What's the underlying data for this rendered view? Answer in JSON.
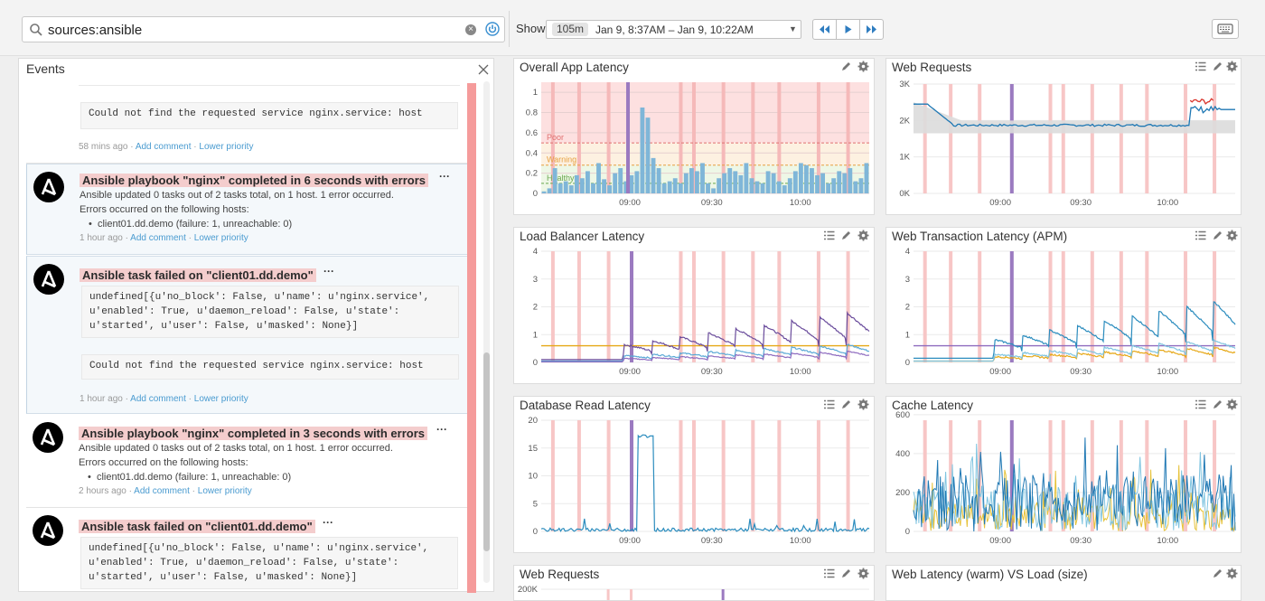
{
  "search": {
    "query": "sources:ansible"
  },
  "timebar": {
    "show_label": "Show",
    "duration": "105m",
    "range": "Jan 9, 8:37AM – Jan 9, 10:22AM"
  },
  "events": {
    "title": "Events",
    "items": [
      {
        "code": "Could not find the requested service nginx.service: host",
        "time": "58 mins ago",
        "add_comment": "Add comment",
        "priority": "Lower priority"
      },
      {
        "title": "Ansible playbook \"nginx\" completed in 6 seconds with errors",
        "line1": "Ansible updated 0 tasks out of 2 tasks total, on 1 host. 1 error occurred.",
        "line2": "Errors occurred on the following hosts:",
        "host": "client01.dd.demo (failure: 1, unreachable: 0)",
        "time": "1 hour ago",
        "add_comment": "Add comment",
        "priority": "Lower priority"
      },
      {
        "title": "Ansible task failed on \"client01.dd.demo\"",
        "code1": "undefined[{u'no_block': False, u'name': u'nginx.service',",
        "code2": "u'enabled': True, u'daemon_reload': False, u'state':",
        "code3": "u'started', u'user': False, u'masked': None}]",
        "code4": "Could not find the requested service nginx.service: host",
        "time": "1 hour ago",
        "add_comment": "Add comment",
        "priority": "Lower priority"
      },
      {
        "title": "Ansible playbook \"nginx\" completed in 3 seconds with errors",
        "line1": "Ansible updated 0 tasks out of 2 tasks total, on 1 host. 1 error occurred.",
        "line2": "Errors occurred on the following hosts:",
        "host": "client01.dd.demo (failure: 1, unreachable: 0)",
        "time": "2 hours ago",
        "add_comment": "Add comment",
        "priority": "Lower priority"
      },
      {
        "title": "Ansible task failed on \"client01.dd.demo\"",
        "code1": "undefined[{u'no_block': False, u'name': u'nginx.service',",
        "code2": "u'enabled': True, u'daemon_reload': False, u'state':",
        "code3": "u'started', u'user': False, u'masked': None}]"
      }
    ]
  },
  "panels": {
    "overall_app_latency": {
      "title": "Overall App Latency"
    },
    "web_requests": {
      "title": "Web Requests"
    },
    "load_balancer_latency": {
      "title": "Load Balancer Latency"
    },
    "web_transaction_latency": {
      "title": "Web Transaction Latency (APM)"
    },
    "database_read_latency": {
      "title": "Database Read Latency"
    },
    "cache_latency": {
      "title": "Cache Latency"
    },
    "web_requests_2": {
      "title": "Web Requests"
    },
    "web_latency_vs_load": {
      "title": "Web Latency (warm) VS Load (size)"
    }
  },
  "chart_data": [
    {
      "id": "overall",
      "type": "bar",
      "x_ticks": [
        "09:00",
        "09:30",
        "10:00"
      ],
      "ylim": [
        0,
        1.1
      ],
      "y_ticks": [
        "0",
        "0.2",
        "0.4",
        "0.6",
        "0.8",
        "1"
      ],
      "thresholds": [
        {
          "label": "Poor",
          "value": 0.5,
          "color": "#e07070"
        },
        {
          "label": "Warning",
          "value": 0.28,
          "color": "#e6a040"
        },
        {
          "label": "Healthy",
          "value": 0.1,
          "color": "#6aa84f"
        }
      ],
      "values": [
        0.02,
        0.05,
        0.25,
        0.1,
        0.12,
        0.08,
        0.18,
        0.15,
        0.22,
        0.1,
        0.3,
        0.14,
        0.08,
        0.2,
        0.25,
        0.12,
        0.18,
        0.22,
        0.85,
        0.75,
        0.35,
        0.25,
        0.1,
        0.12,
        0.15,
        0.1,
        0.2,
        0.25,
        0.22,
        0.3,
        0.1,
        0.05,
        0.15,
        0.2,
        0.25,
        0.22,
        0.18,
        0.3,
        0.15,
        0.12,
        0.1,
        0.22,
        0.2,
        0.12,
        0.08,
        0.15,
        0.22,
        0.3,
        0.28,
        0.25,
        0.18,
        0.2,
        0.1,
        0.15,
        0.22,
        0.2,
        0.25,
        0.12,
        0.15,
        0.3
      ]
    },
    {
      "id": "webreq",
      "type": "line",
      "x_ticks": [
        "09:00",
        "09:30",
        "10:00"
      ],
      "ylim": [
        0,
        3000
      ],
      "y_ticks": [
        "0K",
        "1K",
        "2K",
        "3K"
      ],
      "baseline": 1870,
      "peak": 2450
    },
    {
      "id": "lb",
      "type": "line",
      "x_ticks": [
        "09:00",
        "09:30",
        "10:00"
      ],
      "ylim": [
        0,
        4
      ],
      "y_ticks": [
        "0",
        "1",
        "2",
        "3",
        "4"
      ]
    },
    {
      "id": "apm",
      "type": "line",
      "x_ticks": [
        "09:00",
        "09:30",
        "10:00"
      ],
      "ylim": [
        0,
        4
      ],
      "y_ticks": [
        "0",
        "1",
        "2",
        "3",
        "4"
      ]
    },
    {
      "id": "db",
      "type": "line",
      "x_ticks": [
        "09:00",
        "09:30",
        "10:00"
      ],
      "ylim": [
        0,
        22
      ],
      "y_ticks": [
        "0",
        "5",
        "10",
        "15",
        "20"
      ],
      "spike": 17.5
    },
    {
      "id": "cache",
      "type": "line",
      "x_ticks": [
        "09:00",
        "09:30",
        "10:00"
      ],
      "ylim": [
        0,
        680
      ],
      "y_ticks": [
        "0",
        "200",
        "400",
        "600"
      ]
    },
    {
      "id": "webreq2",
      "type": "line",
      "y_ticks": [
        "200K"
      ]
    }
  ]
}
